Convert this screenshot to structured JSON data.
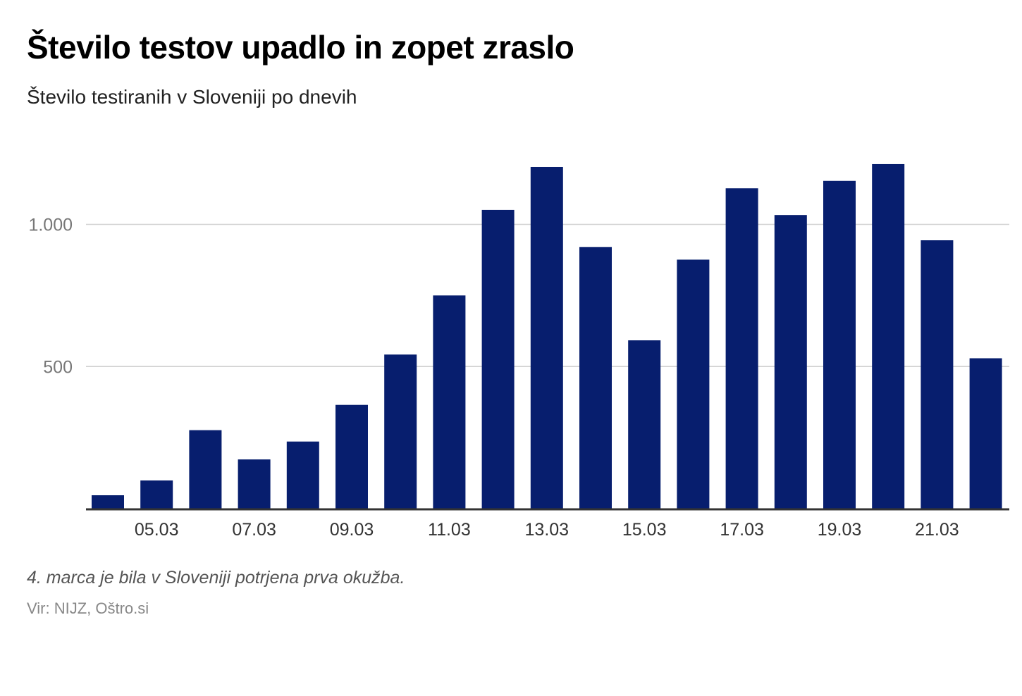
{
  "header": {
    "title": "Število testov upadlo in zopet zraslo",
    "subtitle": "Število testiranih v Sloveniji po dnevih"
  },
  "footer": {
    "note": "4. marca je bila v Sloveniji potrjena prva okužba.",
    "source": "Vir: NIJZ, Oštro.si"
  },
  "colors": {
    "bar": "#071e6e",
    "grid": "#d0d0d0",
    "axis": "#333333",
    "tick_text": "#777777",
    "x_text": "#333333"
  },
  "chart_data": {
    "type": "bar",
    "title": "Število testov upadlo in zopet zraslo",
    "subtitle": "Število testiranih v Sloveniji po dnevih",
    "xlabel": "",
    "ylabel": "",
    "categories": [
      "04.03",
      "05.03",
      "06.03",
      "07.03",
      "08.03",
      "09.03",
      "10.03",
      "11.03",
      "12.03",
      "13.03",
      "14.03",
      "15.03",
      "16.03",
      "17.03",
      "18.03",
      "19.03",
      "20.03",
      "21.03",
      "22.03"
    ],
    "values": [
      47,
      99,
      276,
      173,
      236,
      365,
      542,
      750,
      1051,
      1202,
      920,
      592,
      876,
      1127,
      1033,
      1153,
      1212,
      944,
      529
    ],
    "x_tick_labels": [
      "05.03",
      "07.03",
      "09.03",
      "11.03",
      "13.03",
      "15.03",
      "17.03",
      "19.03",
      "21.03"
    ],
    "y_ticks": [
      500,
      1000
    ],
    "y_tick_labels": [
      "500",
      "1.000"
    ],
    "ylim": [
      0,
      1350
    ],
    "grid": true,
    "legend": "none"
  }
}
